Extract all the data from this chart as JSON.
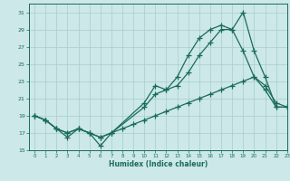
{
  "xlabel": "Humidex (Indice chaleur)",
  "xlim": [
    -0.5,
    23
  ],
  "ylim": [
    15,
    32
  ],
  "yticks": [
    15,
    17,
    19,
    21,
    23,
    25,
    27,
    29,
    31
  ],
  "xticks": [
    0,
    1,
    2,
    3,
    4,
    5,
    6,
    7,
    8,
    9,
    10,
    11,
    12,
    13,
    14,
    15,
    16,
    17,
    18,
    19,
    20,
    21,
    22,
    23
  ],
  "bg_color": "#cce8e8",
  "grid_color": "#aacccc",
  "line_color": "#1a6b5a",
  "line1_x": [
    0,
    1,
    2,
    3,
    4,
    5,
    6,
    7,
    10,
    11,
    12,
    13,
    14,
    15,
    16,
    17,
    18,
    19,
    20,
    21,
    22,
    23
  ],
  "line1_y": [
    19,
    18.5,
    17.5,
    16.5,
    17.5,
    17.0,
    15.5,
    17.0,
    20.5,
    22.5,
    22.0,
    23.5,
    26.0,
    28.0,
    29.0,
    29.5,
    29.0,
    31.0,
    26.5,
    23.5,
    20.0,
    20.0
  ],
  "line2_x": [
    0,
    1,
    2,
    3,
    4,
    5,
    6,
    7,
    10,
    11,
    12,
    13,
    14,
    15,
    16,
    17,
    18,
    19,
    20,
    21,
    22,
    23
  ],
  "line2_y": [
    19,
    18.5,
    17.5,
    17.0,
    17.5,
    17.0,
    16.5,
    17.0,
    20.0,
    21.5,
    22.0,
    22.5,
    24.0,
    26.0,
    27.5,
    29.0,
    29.0,
    26.5,
    23.5,
    22.0,
    20.0,
    20.0
  ],
  "line3_x": [
    0,
    1,
    2,
    3,
    4,
    5,
    6,
    7,
    8,
    9,
    10,
    11,
    12,
    13,
    14,
    15,
    16,
    17,
    18,
    19,
    20,
    21,
    22,
    23
  ],
  "line3_y": [
    19.0,
    18.5,
    17.5,
    17.0,
    17.5,
    17.0,
    16.5,
    17.0,
    17.5,
    18.0,
    18.5,
    19.0,
    19.5,
    20.0,
    20.5,
    21.0,
    21.5,
    22.0,
    22.5,
    23.0,
    23.5,
    22.5,
    20.5,
    20.0
  ]
}
